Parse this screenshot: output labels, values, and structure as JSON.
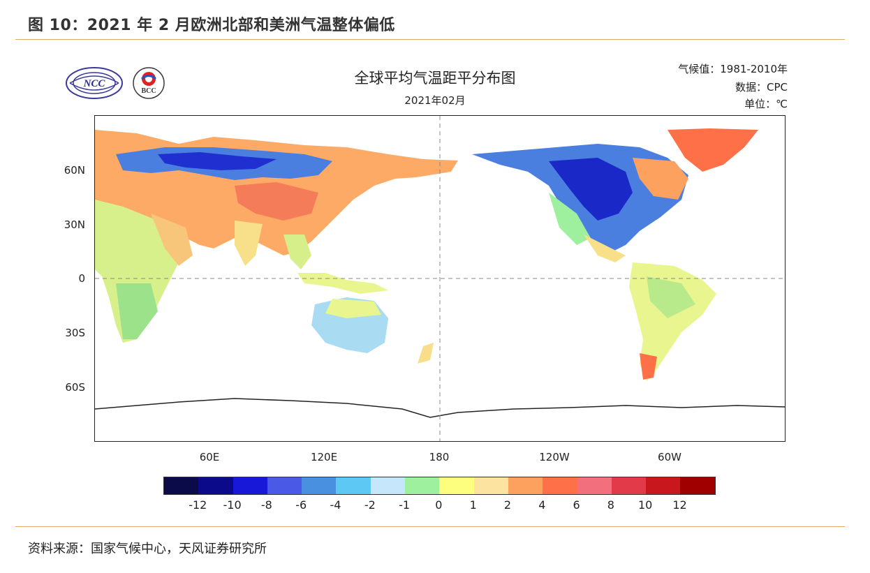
{
  "figure_title": "图 10：2021 年 2 月欧洲北部和美洲气温整体偏低",
  "source": "资料来源：国家气候中心，天风证券研究所",
  "logos": [
    {
      "icon": "ncc-logo",
      "text": "NCC"
    },
    {
      "icon": "bcc-logo",
      "text": "BCC"
    }
  ],
  "map": {
    "title": "全球平均气温距平分布图",
    "subtitle": "2021年02月",
    "info_climatology": "气候值：1981-2010年",
    "info_source": "数据：CPC",
    "info_unit": "单位：℃",
    "lat_labels": [
      "60N",
      "30N",
      "0",
      "30S",
      "60S"
    ],
    "lon_labels": [
      "60E",
      "120E",
      "180",
      "120W",
      "60W"
    ]
  },
  "colorbar": {
    "colors": [
      "#0b0b4a",
      "#0a0a8a",
      "#1818d8",
      "#4a5ae6",
      "#4a90e0",
      "#5ec8f5",
      "#c6e6fb",
      "#9ef09e",
      "#fdfd7e",
      "#fde3a0",
      "#fda25e",
      "#fd7048",
      "#f2707e",
      "#e23a48",
      "#c8181e",
      "#a00000"
    ],
    "labels": [
      "-12",
      "-10",
      "-8",
      "-6",
      "-4",
      "-2",
      "-1",
      "0",
      "1",
      "2",
      "4",
      "6",
      "8",
      "10",
      "12"
    ]
  }
}
